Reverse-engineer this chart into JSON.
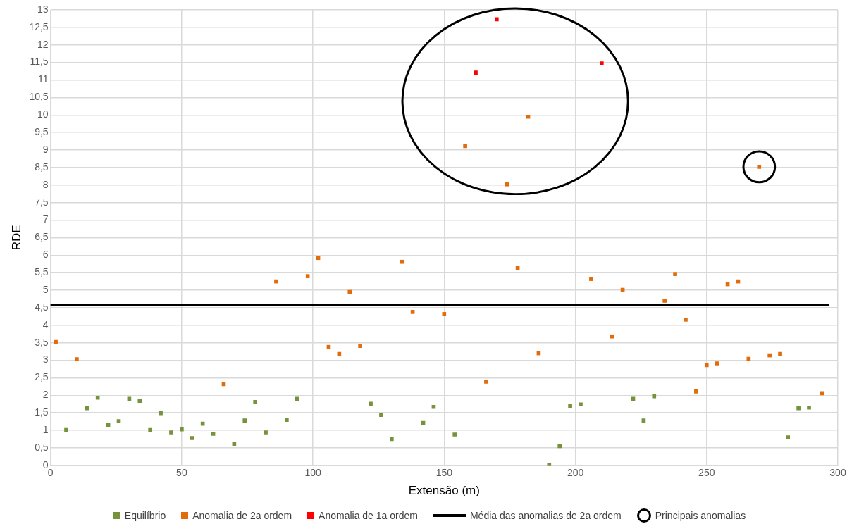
{
  "chart_data": {
    "type": "scatter",
    "xlabel": "Extensão (m)",
    "ylabel": "RDE",
    "xlim": [
      0,
      300
    ],
    "xticks": [
      0,
      50,
      100,
      150,
      200,
      250,
      300
    ],
    "ylim": [
      0,
      13
    ],
    "yticks": [
      0,
      {
        "value": 0.5,
        "label": "0,5"
      },
      1,
      {
        "value": 1.5,
        "label": "1,5"
      },
      2,
      {
        "value": 2.5,
        "label": "2,5"
      },
      3,
      {
        "value": 3.5,
        "label": "3,5"
      },
      4,
      {
        "value": 4.5,
        "label": "4,5"
      },
      5,
      {
        "value": 5.5,
        "label": "5,5"
      },
      6,
      {
        "value": 6.5,
        "label": "6,5"
      },
      7,
      {
        "value": 7.5,
        "label": "7,5"
      },
      8,
      {
        "value": 8.5,
        "label": "8,5"
      },
      9,
      {
        "value": 9.5,
        "label": "9,5"
      },
      10,
      {
        "value": 10.5,
        "label": "10,5"
      },
      11,
      {
        "value": 11.5,
        "label": "11,5"
      },
      12,
      {
        "value": 12.5,
        "label": "12,5"
      },
      13
    ],
    "grid": true,
    "legend": "bottom",
    "marker": "square",
    "series": [
      {
        "name": "Equilíbrio",
        "color": "#76923c",
        "x": [
          6,
          14,
          18,
          22,
          26,
          30,
          34,
          38,
          42,
          46,
          50,
          54,
          58,
          62,
          70,
          74,
          78,
          82,
          90,
          94,
          122,
          126,
          130,
          142,
          146,
          154,
          190,
          194,
          198,
          202,
          222,
          226,
          230,
          281,
          285,
          289
        ],
        "values": [
          1.01,
          1.63,
          1.93,
          1.15,
          1.26,
          1.9,
          1.84,
          1.01,
          1.49,
          0.94,
          1.03,
          0.78,
          1.19,
          0.9,
          0.6,
          1.28,
          1.81,
          0.94,
          1.3,
          1.9,
          1.76,
          1.44,
          0.75,
          1.21,
          1.67,
          0.88,
          0,
          0.55,
          1.7,
          1.74,
          1.9,
          1.28,
          1.97,
          0.8,
          1.63,
          1.65
        ]
      },
      {
        "name": "Anomalia de 2a ordem",
        "color": "#e36c0a",
        "x": [
          2,
          10,
          66,
          86,
          98,
          102,
          106,
          110,
          114,
          118,
          134,
          138,
          150,
          158,
          166,
          174,
          178,
          182,
          186,
          206,
          214,
          218,
          234,
          238,
          242,
          246,
          250,
          254,
          258,
          262,
          266,
          270,
          274,
          278,
          294
        ],
        "values": [
          3.52,
          3.03,
          2.32,
          5.25,
          5.4,
          5.92,
          3.38,
          3.18,
          4.95,
          3.41,
          5.81,
          4.38,
          4.32,
          9.11,
          2.39,
          8.02,
          5.63,
          9.95,
          3.2,
          5.32,
          3.68,
          5.01,
          4.7,
          5.46,
          4.16,
          2.11,
          2.86,
          2.91,
          5.17,
          5.25,
          3.04,
          8.52,
          3.14,
          3.18,
          2.06
        ]
      },
      {
        "name": "Anomalia de 1a ordem",
        "color": "#ff0000",
        "x": [
          162,
          170,
          210
        ],
        "values": [
          11.21,
          12.73,
          11.47
        ]
      }
    ],
    "ref_lines": [
      {
        "axis": "y",
        "value": 4.57,
        "label": "Média das anomalias de 2a ordem",
        "color": "#000000"
      }
    ],
    "annotations": [
      "Principais  anomalias"
    ]
  }
}
